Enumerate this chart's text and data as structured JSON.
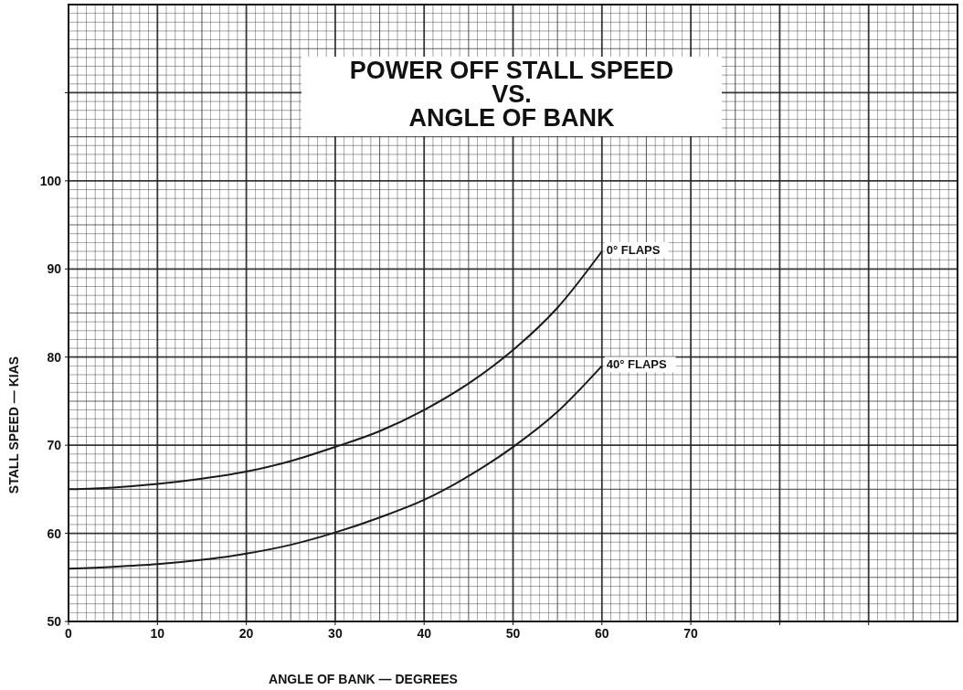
{
  "chart_data": {
    "type": "line",
    "title": "POWER OFF STALL SPEED\nVS.\nANGLE OF BANK",
    "xlabel": "ANGLE OF BANK — DEGREES",
    "ylabel": "STALL SPEED — KIAS",
    "x": [
      0,
      5,
      10,
      15,
      20,
      25,
      30,
      35,
      40,
      45,
      50,
      55,
      60
    ],
    "series": [
      {
        "name": "0° FLAPS",
        "color": "#1a1a1a",
        "values": [
          65,
          65.2,
          65.6,
          66.2,
          67,
          68.2,
          69.8,
          71.6,
          74,
          77,
          80.8,
          85.6,
          92
        ]
      },
      {
        "name": "40° FLAPS",
        "color": "#1a1a1a",
        "values": [
          56,
          56.2,
          56.5,
          57,
          57.7,
          58.7,
          60.1,
          61.8,
          63.8,
          66.5,
          69.8,
          73.8,
          79
        ]
      }
    ],
    "xlim": [
      0,
      100
    ],
    "xticks": [
      0,
      10,
      20,
      30,
      40,
      50,
      60,
      70,
      {
        "value": 80,
        "label": null
      },
      {
        "value": 90,
        "label": null
      }
    ],
    "ylim": [
      50,
      120
    ],
    "yticks": [
      50,
      60,
      70,
      80,
      90,
      100,
      {
        "value": 110,
        "label": null
      }
    ],
    "grid": true,
    "marker": "none",
    "line_style": "solid"
  }
}
